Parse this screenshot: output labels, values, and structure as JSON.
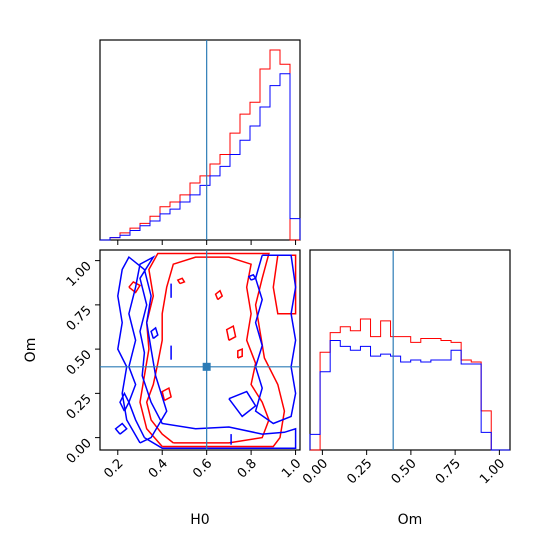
{
  "chart_data": {
    "type": "corner",
    "parameters": [
      "H0",
      "Om"
    ],
    "colors": {
      "series_a": "#ff0000",
      "series_b": "#0000ff",
      "truth": "#2c7bb6"
    },
    "truth": {
      "H0": 0.6,
      "Om": 0.4
    },
    "h0_range": [
      0.12,
      1.02
    ],
    "om_range": [
      -0.07,
      1.06
    ],
    "h0_ticks": [
      "0.2",
      "0.4",
      "0.6",
      "0.8",
      "1.0"
    ],
    "om_ticks": [
      "0.00",
      "0.25",
      "0.50",
      "0.75",
      "1.00"
    ],
    "h0_hist": {
      "bin_edges": [
        0.12,
        0.165,
        0.21,
        0.255,
        0.3,
        0.345,
        0.39,
        0.435,
        0.48,
        0.525,
        0.57,
        0.615,
        0.66,
        0.705,
        0.75,
        0.795,
        0.84,
        0.885,
        0.93,
        0.975,
        1.02
      ],
      "series": [
        {
          "color": "red",
          "counts": [
            0,
            1,
            3,
            5,
            7,
            10,
            14,
            16,
            19,
            24,
            27,
            32,
            36,
            45,
            53,
            58,
            72,
            80,
            74,
            0
          ]
        },
        {
          "color": "blue",
          "counts": [
            0,
            1,
            2,
            4,
            6,
            8,
            11,
            13,
            16,
            19,
            23,
            27,
            31,
            36,
            42,
            48,
            56,
            65,
            70,
            9
          ]
        }
      ]
    },
    "om_hist": {
      "bin_edges": [
        -0.07,
        -0.013,
        0.044,
        0.101,
        0.158,
        0.215,
        0.272,
        0.329,
        0.385,
        0.442,
        0.499,
        0.556,
        0.613,
        0.67,
        0.727,
        0.784,
        0.841,
        0.897,
        0.954,
        1.011,
        1.06
      ],
      "series": [
        {
          "color": "red",
          "counts": [
            0,
            50,
            60,
            63,
            61,
            67,
            58,
            66,
            58,
            58,
            55,
            57,
            57,
            56,
            55,
            46,
            45,
            20,
            0,
            0
          ]
        },
        {
          "color": "blue",
          "counts": [
            8,
            40,
            56,
            53,
            51,
            53,
            48,
            49,
            48,
            45,
            46,
            45,
            46,
            46,
            51,
            44,
            44,
            9,
            0,
            0
          ]
        }
      ]
    },
    "contours": [
      {
        "color": "red",
        "points": [
          [
            0.45,
            -0.03
          ],
          [
            0.4,
            0.02
          ],
          [
            0.35,
            0.1
          ],
          [
            0.33,
            0.2
          ],
          [
            0.36,
            0.3
          ],
          [
            0.38,
            0.42
          ],
          [
            0.4,
            0.55
          ],
          [
            0.4,
            0.7
          ],
          [
            0.42,
            0.85
          ],
          [
            0.45,
            0.98
          ],
          [
            0.55,
            1.02
          ],
          [
            0.7,
            1.02
          ],
          [
            0.8,
            0.98
          ],
          [
            0.78,
            0.85
          ],
          [
            0.8,
            0.7
          ],
          [
            0.78,
            0.55
          ],
          [
            0.82,
            0.42
          ],
          [
            0.8,
            0.3
          ],
          [
            0.85,
            0.2
          ],
          [
            0.88,
            0.1
          ],
          [
            0.85,
            0.0
          ],
          [
            0.7,
            -0.03
          ],
          [
            0.55,
            -0.03
          ],
          [
            0.45,
            -0.03
          ]
        ]
      },
      {
        "color": "red",
        "points": [
          [
            0.4,
            -0.05
          ],
          [
            0.33,
            0.05
          ],
          [
            0.3,
            0.2
          ],
          [
            0.32,
            0.35
          ],
          [
            0.34,
            0.5
          ],
          [
            0.33,
            0.65
          ],
          [
            0.36,
            0.8
          ],
          [
            0.34,
            0.95
          ],
          [
            0.38,
            1.04
          ],
          [
            0.88,
            1.04
          ],
          [
            0.85,
            0.9
          ],
          [
            0.82,
            0.75
          ],
          [
            0.84,
            0.6
          ],
          [
            0.86,
            0.45
          ],
          [
            0.92,
            0.3
          ],
          [
            0.95,
            0.15
          ],
          [
            0.93,
            0.0
          ],
          [
            0.9,
            -0.05
          ],
          [
            0.4,
            -0.05
          ]
        ]
      },
      {
        "color": "red",
        "points": [
          [
            0.92,
            1.03
          ],
          [
            0.9,
            0.85
          ],
          [
            0.92,
            0.7
          ],
          [
            1.0,
            0.7
          ],
          [
            1.0,
            1.03
          ],
          [
            0.92,
            1.03
          ]
        ]
      },
      {
        "color": "red",
        "points": [
          [
            0.25,
            0.85
          ],
          [
            0.28,
            0.82
          ],
          [
            0.3,
            0.86
          ],
          [
            0.27,
            0.88
          ],
          [
            0.25,
            0.85
          ]
        ]
      },
      {
        "color": "red",
        "points": [
          [
            0.41,
            0.21
          ],
          [
            0.44,
            0.23
          ],
          [
            0.43,
            0.28
          ],
          [
            0.4,
            0.26
          ],
          [
            0.41,
            0.21
          ]
        ]
      },
      {
        "color": "red",
        "points": [
          [
            0.7,
            0.55
          ],
          [
            0.73,
            0.57
          ],
          [
            0.72,
            0.63
          ],
          [
            0.69,
            0.61
          ],
          [
            0.7,
            0.55
          ]
        ]
      },
      {
        "color": "red",
        "points": [
          [
            0.74,
            0.45
          ],
          [
            0.76,
            0.46
          ],
          [
            0.76,
            0.5
          ],
          [
            0.74,
            0.49
          ],
          [
            0.74,
            0.45
          ]
        ]
      },
      {
        "color": "red",
        "points": [
          [
            0.65,
            0.78
          ],
          [
            0.67,
            0.8
          ],
          [
            0.66,
            0.83
          ],
          [
            0.64,
            0.81
          ],
          [
            0.65,
            0.78
          ]
        ]
      },
      {
        "color": "red",
        "points": [
          [
            0.48,
            0.87
          ],
          [
            0.5,
            0.88
          ],
          [
            0.49,
            0.9
          ],
          [
            0.47,
            0.89
          ],
          [
            0.48,
            0.87
          ]
        ]
      },
      {
        "color": "blue",
        "points": [
          [
            0.32,
            0.0
          ],
          [
            0.28,
            0.1
          ],
          [
            0.25,
            0.2
          ],
          [
            0.28,
            0.3
          ],
          [
            0.25,
            0.4
          ],
          [
            0.28,
            0.55
          ],
          [
            0.25,
            0.7
          ],
          [
            0.28,
            0.85
          ],
          [
            0.3,
            0.98
          ],
          [
            0.36,
            1.02
          ],
          [
            0.3,
            0.9
          ],
          [
            0.33,
            0.75
          ],
          [
            0.3,
            0.6
          ],
          [
            0.32,
            0.48
          ],
          [
            0.31,
            0.35
          ],
          [
            0.35,
            0.2
          ],
          [
            0.4,
            0.08
          ],
          [
            0.55,
            0.05
          ],
          [
            0.7,
            0.06
          ],
          [
            0.85,
            0.02
          ],
          [
            0.95,
            0.03
          ],
          [
            1.0,
            0.05
          ],
          [
            1.0,
            -0.06
          ],
          [
            0.8,
            -0.06
          ],
          [
            0.55,
            -0.06
          ],
          [
            0.4,
            -0.06
          ],
          [
            0.32,
            0.0
          ]
        ]
      },
      {
        "color": "blue",
        "points": [
          [
            0.3,
            -0.03
          ],
          [
            0.24,
            0.1
          ],
          [
            0.22,
            0.25
          ],
          [
            0.24,
            0.4
          ],
          [
            0.2,
            0.5
          ],
          [
            0.22,
            0.65
          ],
          [
            0.2,
            0.8
          ],
          [
            0.22,
            0.95
          ],
          [
            0.25,
            1.02
          ],
          [
            0.32,
            0.95
          ],
          [
            0.35,
            0.8
          ],
          [
            0.33,
            0.65
          ],
          [
            0.35,
            0.5
          ],
          [
            0.37,
            0.35
          ],
          [
            0.42,
            0.15
          ],
          [
            0.35,
            0.0
          ],
          [
            0.3,
            -0.03
          ]
        ]
      },
      {
        "color": "blue",
        "points": [
          [
            0.85,
            1.03
          ],
          [
            0.82,
            0.9
          ],
          [
            0.85,
            0.78
          ],
          [
            0.82,
            0.65
          ],
          [
            0.85,
            0.52
          ],
          [
            0.82,
            0.4
          ],
          [
            0.85,
            0.28
          ],
          [
            0.82,
            0.15
          ],
          [
            0.9,
            0.08
          ],
          [
            0.98,
            0.12
          ],
          [
            1.0,
            0.25
          ],
          [
            0.98,
            0.4
          ],
          [
            1.0,
            0.55
          ],
          [
            0.98,
            0.7
          ],
          [
            1.0,
            0.85
          ],
          [
            0.98,
            1.03
          ],
          [
            0.85,
            1.03
          ]
        ]
      },
      {
        "color": "blue",
        "points": [
          [
            0.7,
            0.22
          ],
          [
            0.76,
            0.12
          ],
          [
            0.82,
            0.18
          ],
          [
            0.78,
            0.26
          ],
          [
            0.7,
            0.22
          ]
        ]
      },
      {
        "color": "blue",
        "points": [
          [
            0.21,
            0.02
          ],
          [
            0.24,
            0.05
          ],
          [
            0.22,
            0.08
          ],
          [
            0.19,
            0.05
          ],
          [
            0.21,
            0.02
          ]
        ]
      },
      {
        "color": "blue",
        "points": [
          [
            0.23,
            0.15
          ],
          [
            0.25,
            0.2
          ],
          [
            0.23,
            0.25
          ],
          [
            0.21,
            0.2
          ],
          [
            0.23,
            0.15
          ]
        ]
      },
      {
        "color": "blue",
        "points": [
          [
            0.36,
            0.56
          ],
          [
            0.38,
            0.58
          ],
          [
            0.37,
            0.62
          ],
          [
            0.35,
            0.6
          ],
          [
            0.36,
            0.56
          ]
        ]
      },
      {
        "color": "blue",
        "points": [
          [
            0.8,
            0.89
          ],
          [
            0.82,
            0.9
          ],
          [
            0.81,
            0.92
          ],
          [
            0.79,
            0.91
          ],
          [
            0.8,
            0.89
          ]
        ]
      },
      {
        "color": "blue",
        "points": [
          [
            0.44,
            0.79
          ],
          [
            0.44,
            0.87
          ]
        ]
      },
      {
        "color": "blue",
        "points": [
          [
            0.44,
            0.44
          ],
          [
            0.44,
            0.52
          ]
        ]
      },
      {
        "color": "blue",
        "points": [
          [
            0.71,
            -0.04
          ],
          [
            0.71,
            0.02
          ]
        ]
      }
    ]
  }
}
